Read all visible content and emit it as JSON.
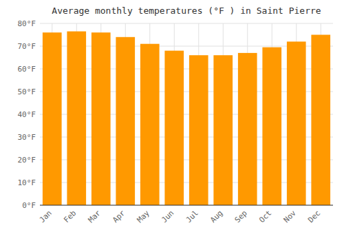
{
  "chart_data": {
    "type": "bar",
    "title": "Average monthly temperatures (°F ) in Saint Pierre",
    "categories": [
      "Jan",
      "Feb",
      "Mar",
      "Apr",
      "May",
      "Jun",
      "Jul",
      "Aug",
      "Sep",
      "Oct",
      "Nov",
      "Dec"
    ],
    "values": [
      76,
      76.5,
      76,
      74,
      71,
      68,
      66,
      66,
      67,
      69.5,
      72,
      75
    ],
    "color": "#FF9900",
    "ylim": [
      0,
      80
    ],
    "yticks": [
      {
        "value": 0,
        "label": "0°F"
      },
      {
        "value": 10,
        "label": "10°F"
      },
      {
        "value": 20,
        "label": "20°F"
      },
      {
        "value": 30,
        "label": "30°F"
      },
      {
        "value": 40,
        "label": "40°F"
      },
      {
        "value": 50,
        "label": "50°F"
      },
      {
        "value": 60,
        "label": "60°F"
      },
      {
        "value": 70,
        "label": "70°F"
      },
      {
        "value": 80,
        "label": "80°F"
      }
    ],
    "grid": true
  }
}
